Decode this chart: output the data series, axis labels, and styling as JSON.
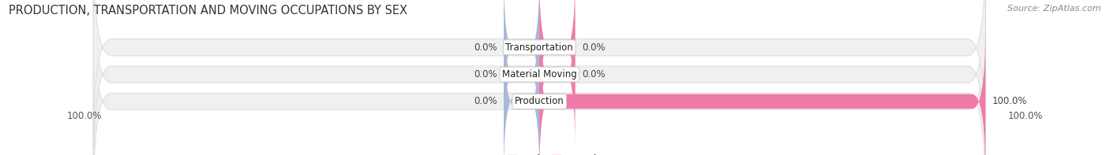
{
  "title": "PRODUCTION, TRANSPORTATION AND MOVING OCCUPATIONS BY SEX",
  "source": "Source: ZipAtlas.com",
  "categories": [
    "Transportation",
    "Material Moving",
    "Production"
  ],
  "male_values": [
    0.0,
    0.0,
    0.0
  ],
  "female_values": [
    0.0,
    0.0,
    100.0
  ],
  "male_color": "#a8b8d8",
  "female_color": "#f07aaa",
  "bar_bg_color": "#f0f0f0",
  "bar_stroke_color": "#d8d8d8",
  "bar_height": 0.62,
  "male_stub": 8.0,
  "female_stub": 8.0,
  "left_label": "100.0%",
  "right_label": "100.0%",
  "title_fontsize": 10.5,
  "source_fontsize": 8,
  "label_fontsize": 8.5,
  "tick_fontsize": 8.5
}
